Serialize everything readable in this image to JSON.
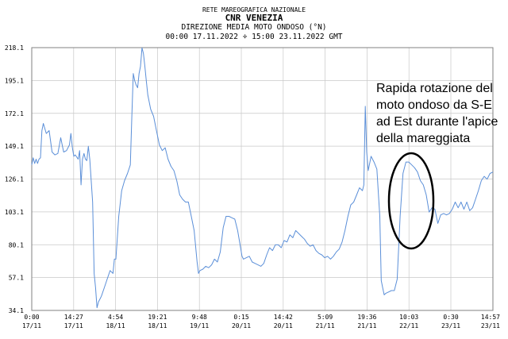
{
  "header": {
    "network": "RETE MAREOGRAFICA NAZIONALE",
    "station": "CNR VENEZIA",
    "parameter": "DIREZIONE MEDIA MOTO ONDOSO (°N)",
    "period": "00:00 17.11.2022 ÷ 15:00 23.11.2022 GMT"
  },
  "annotation": {
    "lines": [
      "Rapida rotazione del",
      "moto ondoso da S-E",
      "ad Est durante l'apice",
      "della mareggiata"
    ]
  },
  "colors": {
    "series": "#5b8fd8",
    "grid": "#c8c8c8",
    "axis": "#808080",
    "ellipse": "#000000"
  },
  "chart_data": {
    "type": "line",
    "title": "DIREZIONE MEDIA MOTO ONDOSO (°N)",
    "xlabel": "",
    "ylabel": "",
    "ylim": [
      34.1,
      218.1
    ],
    "xlim": [
      0,
      159
    ],
    "x_unit": "hours from 00:00 17/11",
    "yticks": [
      "34.1",
      "57.1",
      "80.1",
      "103.1",
      "126.1",
      "149.1",
      "172.1",
      "195.1",
      "218.1"
    ],
    "xticks": [
      {
        "time": "0:00",
        "date": "17/11",
        "hour": 0
      },
      {
        "time": "14:27",
        "date": "17/11",
        "hour": 14.45
      },
      {
        "time": "4:54",
        "date": "18/11",
        "hour": 28.9
      },
      {
        "time": "19:21",
        "date": "18/11",
        "hour": 43.35
      },
      {
        "time": "9:48",
        "date": "19/11",
        "hour": 57.8
      },
      {
        "time": "0:15",
        "date": "20/11",
        "hour": 72.25
      },
      {
        "time": "14:42",
        "date": "20/11",
        "hour": 86.7
      },
      {
        "time": "5:09",
        "date": "21/11",
        "hour": 101.15
      },
      {
        "time": "19:36",
        "date": "21/11",
        "hour": 115.6
      },
      {
        "time": "10:03",
        "date": "22/11",
        "hour": 130.05
      },
      {
        "time": "0:30",
        "date": "23/11",
        "hour": 144.5
      },
      {
        "time": "14:57",
        "date": "23/11",
        "hour": 158.95
      }
    ],
    "grid": true,
    "series": [
      {
        "name": "",
        "points": [
          [
            0,
            136
          ],
          [
            0.5,
            141
          ],
          [
            1,
            137
          ],
          [
            1.5,
            140
          ],
          [
            2,
            137
          ],
          [
            2.5,
            140
          ],
          [
            3,
            141
          ],
          [
            3.5,
            160
          ],
          [
            4,
            165
          ],
          [
            5,
            158
          ],
          [
            6,
            160
          ],
          [
            7,
            145
          ],
          [
            8,
            143
          ],
          [
            9,
            144
          ],
          [
            10,
            155
          ],
          [
            11,
            145
          ],
          [
            12,
            146
          ],
          [
            13,
            150
          ],
          [
            13.5,
            158
          ],
          [
            14,
            148
          ],
          [
            14.5,
            142
          ],
          [
            15,
            143
          ],
          [
            16,
            140
          ],
          [
            16.5,
            146
          ],
          [
            17,
            122
          ],
          [
            17.5,
            140
          ],
          [
            18,
            144
          ],
          [
            18.5,
            140
          ],
          [
            19,
            139
          ],
          [
            19.5,
            149
          ],
          [
            20,
            140
          ],
          [
            21,
            110
          ],
          [
            21.5,
            60
          ],
          [
            22,
            50
          ],
          [
            22.5,
            36
          ],
          [
            23,
            40
          ],
          [
            24,
            44
          ],
          [
            25,
            50
          ],
          [
            26,
            56
          ],
          [
            27,
            62
          ],
          [
            28,
            60
          ],
          [
            28.5,
            70
          ],
          [
            29,
            70
          ],
          [
            30,
            100
          ],
          [
            31,
            118
          ],
          [
            32,
            125
          ],
          [
            33,
            130
          ],
          [
            34,
            136
          ],
          [
            34.5,
            170
          ],
          [
            35,
            200
          ],
          [
            35.5,
            195
          ],
          [
            36,
            192
          ],
          [
            36.5,
            190
          ],
          [
            37,
            200
          ],
          [
            37.5,
            205
          ],
          [
            38,
            218
          ],
          [
            38.5,
            214
          ],
          [
            39,
            205
          ],
          [
            39.5,
            195
          ],
          [
            40,
            185
          ],
          [
            41,
            175
          ],
          [
            42,
            170
          ],
          [
            43,
            160
          ],
          [
            44,
            150
          ],
          [
            45,
            146
          ],
          [
            46,
            148
          ],
          [
            47,
            140
          ],
          [
            48,
            135
          ],
          [
            49,
            132
          ],
          [
            50,
            125
          ],
          [
            51,
            115
          ],
          [
            52,
            112
          ],
          [
            53,
            110
          ],
          [
            54,
            110
          ],
          [
            55,
            100
          ],
          [
            56,
            90
          ],
          [
            57,
            68
          ],
          [
            57.5,
            60
          ],
          [
            58,
            62
          ],
          [
            59,
            63
          ],
          [
            60,
            65
          ],
          [
            61,
            64
          ],
          [
            62,
            66
          ],
          [
            63,
            70
          ],
          [
            64,
            68
          ],
          [
            65,
            75
          ],
          [
            66,
            92
          ],
          [
            67,
            100
          ],
          [
            68,
            100
          ],
          [
            69,
            99
          ],
          [
            70,
            98
          ],
          [
            71,
            90
          ],
          [
            72,
            78
          ],
          [
            72.5,
            72
          ],
          [
            73,
            70
          ],
          [
            74,
            71
          ],
          [
            75,
            72
          ],
          [
            76,
            68
          ],
          [
            77,
            67
          ],
          [
            78,
            66
          ],
          [
            79,
            65
          ],
          [
            80,
            67
          ],
          [
            81,
            73
          ],
          [
            82,
            78
          ],
          [
            83,
            76
          ],
          [
            84,
            80
          ],
          [
            85,
            80
          ],
          [
            86,
            78
          ],
          [
            87,
            83
          ],
          [
            88,
            82
          ],
          [
            89,
            87
          ],
          [
            90,
            85
          ],
          [
            91,
            90
          ],
          [
            92,
            88
          ],
          [
            93,
            86
          ],
          [
            94,
            84
          ],
          [
            95,
            81
          ],
          [
            96,
            79
          ],
          [
            97,
            80
          ],
          [
            98,
            76
          ],
          [
            99,
            74
          ],
          [
            100,
            73
          ],
          [
            101,
            71
          ],
          [
            102,
            72
          ],
          [
            103,
            70
          ],
          [
            104,
            72
          ],
          [
            105,
            75
          ],
          [
            106,
            77
          ],
          [
            107,
            82
          ],
          [
            108,
            90
          ],
          [
            109,
            100
          ],
          [
            110,
            108
          ],
          [
            111,
            110
          ],
          [
            112,
            115
          ],
          [
            113,
            120
          ],
          [
            114,
            118
          ],
          [
            114.5,
            122
          ],
          [
            115,
            177
          ],
          [
            115.5,
            145
          ],
          [
            116,
            132
          ],
          [
            117,
            142
          ],
          [
            118,
            138
          ],
          [
            119,
            133
          ],
          [
            120,
            100
          ],
          [
            120.5,
            55
          ],
          [
            121,
            50
          ],
          [
            121.5,
            45
          ],
          [
            122,
            46
          ],
          [
            123,
            47
          ],
          [
            124,
            48
          ],
          [
            125,
            48
          ],
          [
            126,
            56
          ],
          [
            127,
            100
          ],
          [
            128,
            130
          ],
          [
            129,
            138
          ],
          [
            130,
            138
          ],
          [
            131,
            136
          ],
          [
            132,
            134
          ],
          [
            133,
            131
          ],
          [
            134,
            125
          ],
          [
            135,
            122
          ],
          [
            136,
            115
          ],
          [
            137,
            103
          ],
          [
            138,
            106
          ],
          [
            139,
            105
          ],
          [
            140,
            95
          ],
          [
            141,
            101
          ],
          [
            142,
            102
          ],
          [
            143,
            101
          ],
          [
            144,
            102
          ],
          [
            145,
            105
          ],
          [
            146,
            110
          ],
          [
            147,
            106
          ],
          [
            148,
            110
          ],
          [
            149,
            105
          ],
          [
            150,
            110
          ],
          [
            151,
            104
          ],
          [
            152,
            106
          ],
          [
            153,
            112
          ],
          [
            154,
            118
          ],
          [
            155,
            125
          ],
          [
            156,
            128
          ],
          [
            157,
            126
          ],
          [
            158,
            130
          ],
          [
            159,
            131
          ]
        ]
      }
    ]
  }
}
